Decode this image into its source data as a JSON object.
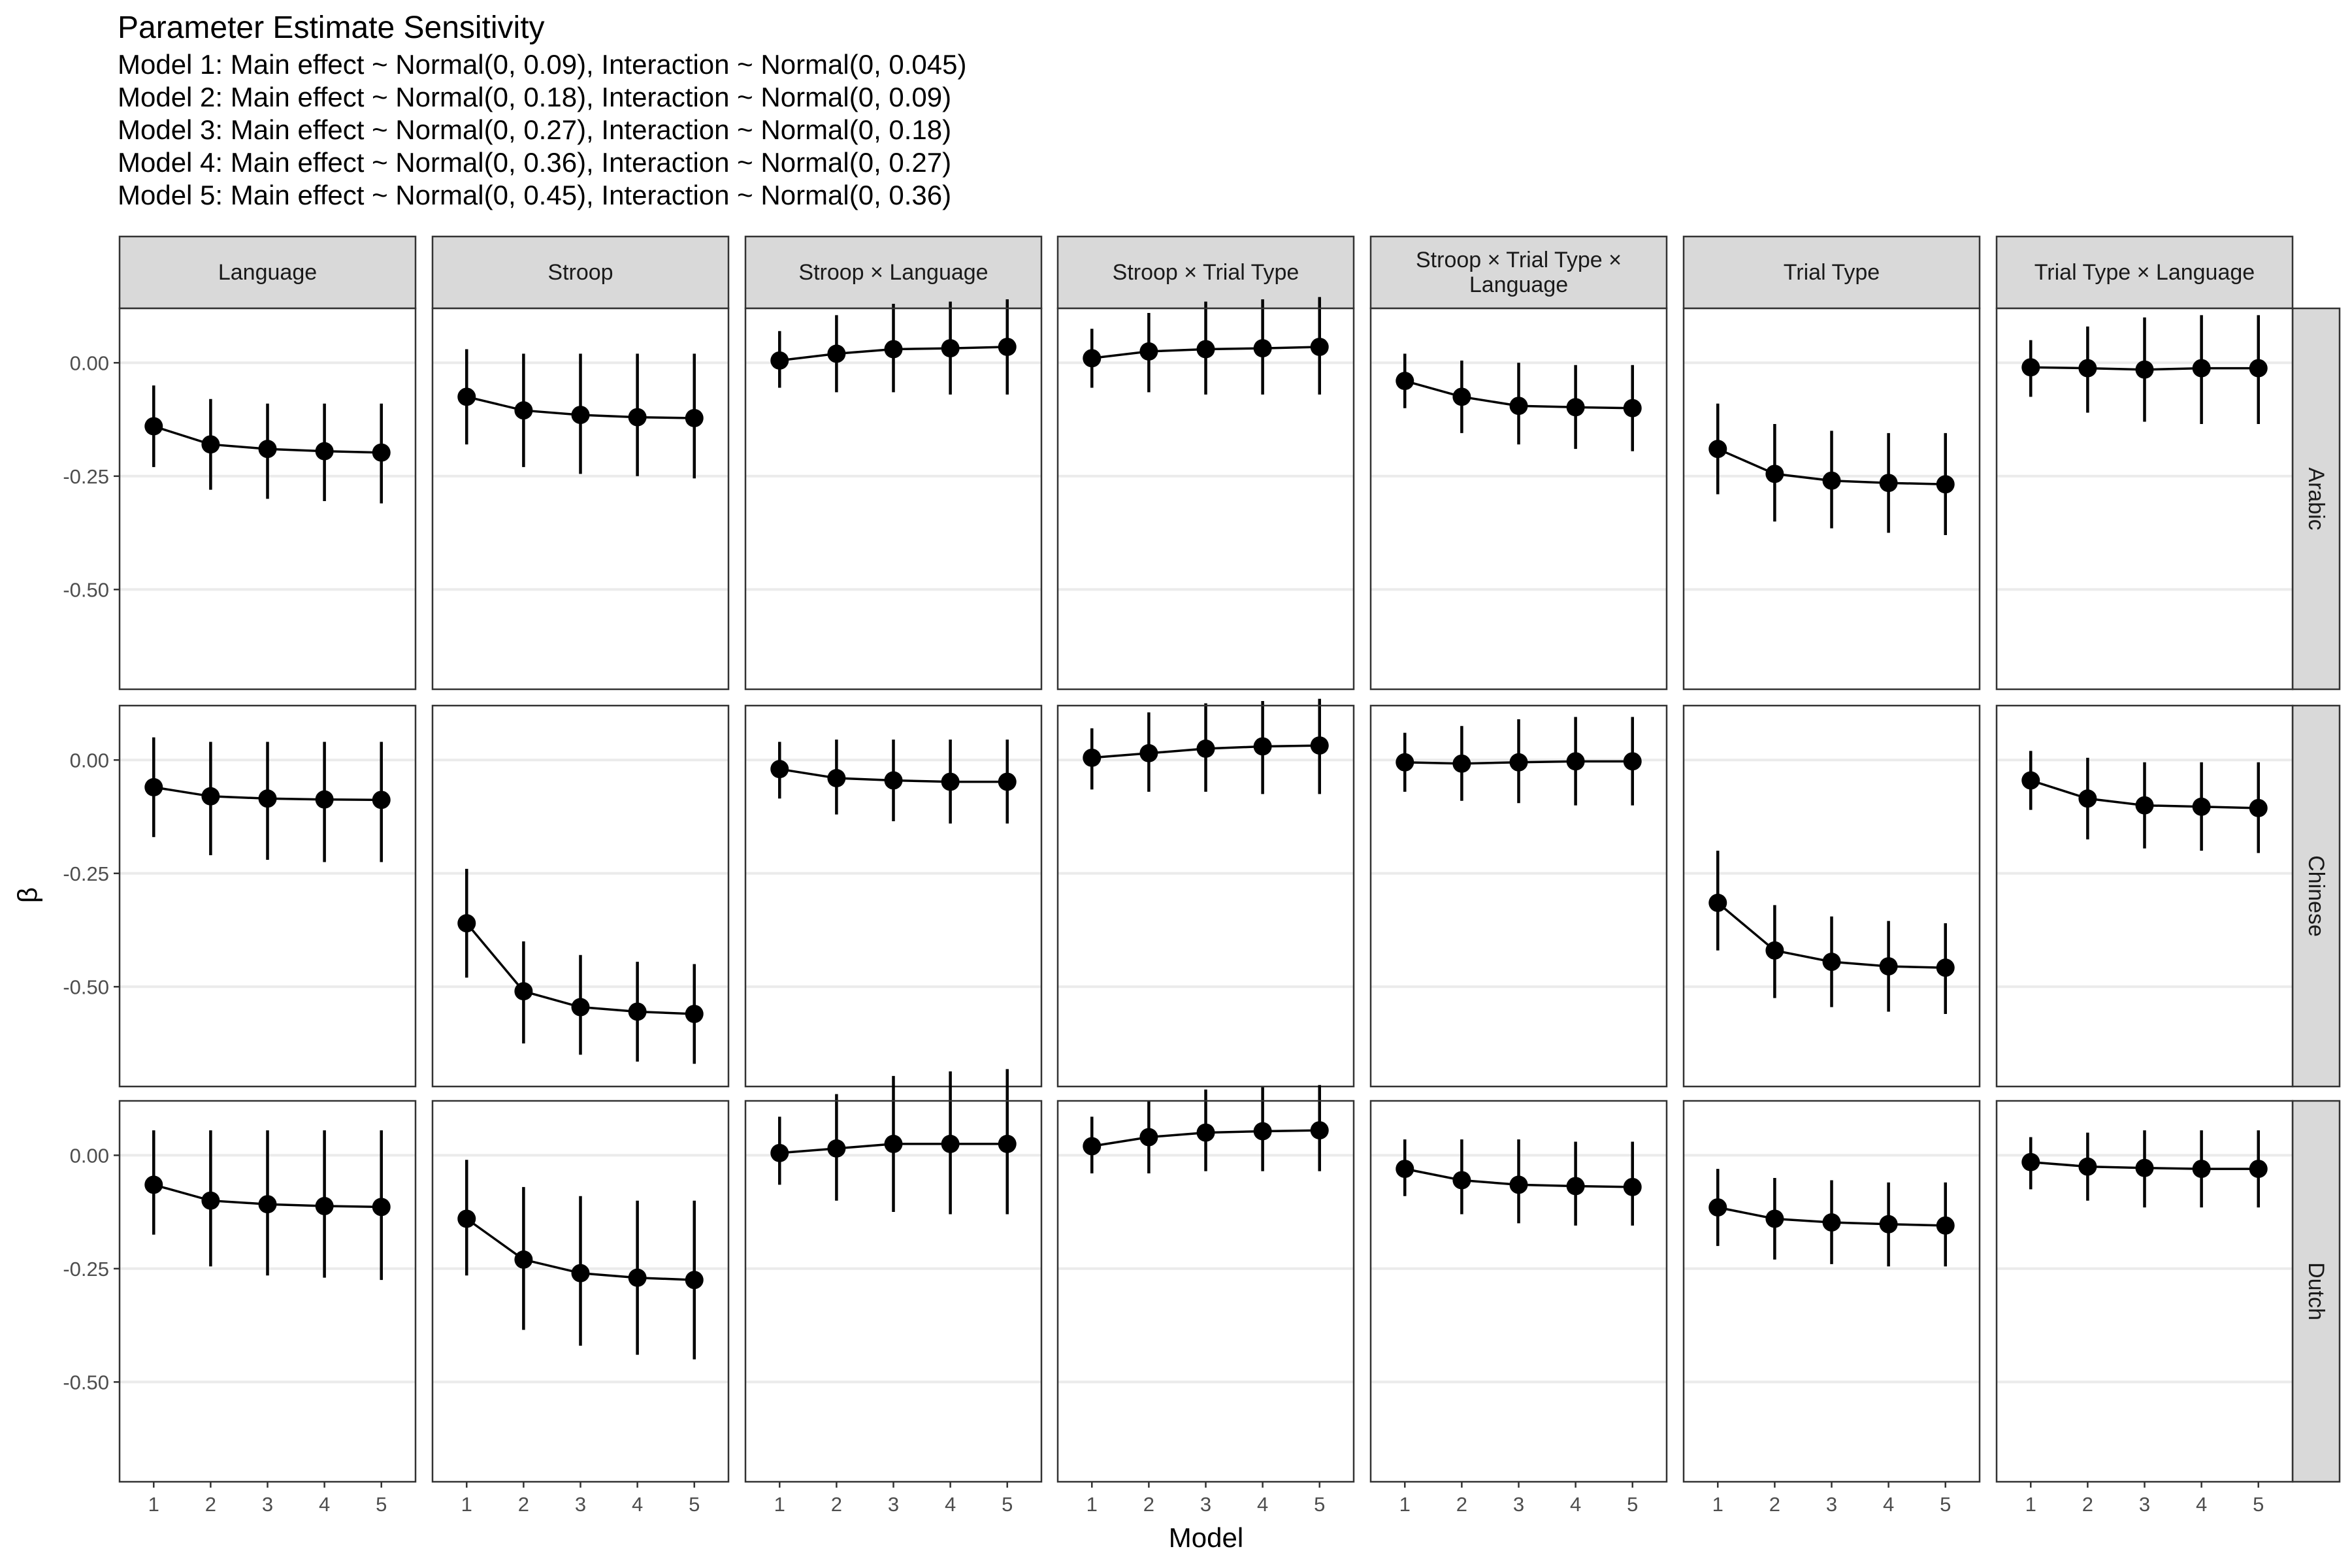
{
  "chart_data": {
    "type": "line",
    "title": "Parameter Estimate Sensitivity",
    "subtitle_lines": [
      "Model 1: Main effect ~ Normal(0, 0.09), Interaction ~ Normal(0, 0.045)",
      "Model 2: Main effect ~ Normal(0, 0.18), Interaction ~ Normal(0, 0.09)",
      "Model 3: Main effect ~ Normal(0, 0.27), Interaction ~ Normal(0, 0.18)",
      "Model 4: Main effect ~ Normal(0, 0.36), Interaction ~ Normal(0, 0.27)",
      "Model 5: Main effect ~ Normal(0, 0.45), Interaction ~ Normal(0, 0.36)"
    ],
    "xlabel": "Model",
    "ylabel": "β",
    "x": [
      1,
      2,
      3,
      4,
      5
    ],
    "x_ticks": [
      "1",
      "2",
      "3",
      "4",
      "5"
    ],
    "y_ticks": [
      0,
      -0.25,
      -0.5
    ],
    "y_tick_labels": [
      "0.00",
      "-0.25",
      "-0.50"
    ],
    "ylim": [
      -0.72,
      0.12
    ],
    "grid": true,
    "facet_columns": [
      "Language",
      "Stroop",
      "Stroop × Trial Type × Language#Stroop × Language",
      "Stroop × Trial Type",
      "Stroop × Trial Type × Language",
      "Trial Type",
      "Trial Type × Language"
    ],
    "column_labels": [
      [
        "Language"
      ],
      [
        "Stroop"
      ],
      [
        "Stroop × Language"
      ],
      [
        "Stroop × Trial Type"
      ],
      [
        "Stroop × Trial Type ×",
        "Language"
      ],
      [
        "Trial Type"
      ],
      [
        "Trial Type × Language"
      ]
    ],
    "facet_rows": [
      "Arabic",
      "Chinese",
      "Dutch"
    ],
    "panels": [
      [
        {
          "est": [
            -0.14,
            -0.18,
            -0.19,
            -0.195,
            -0.198
          ],
          "lo": [
            -0.23,
            -0.28,
            -0.3,
            -0.305,
            -0.31
          ],
          "hi": [
            -0.05,
            -0.08,
            -0.09,
            -0.09,
            -0.09
          ]
        },
        {
          "est": [
            -0.075,
            -0.105,
            -0.115,
            -0.12,
            -0.122
          ],
          "lo": [
            -0.18,
            -0.23,
            -0.245,
            -0.25,
            -0.255
          ],
          "hi": [
            0.03,
            0.02,
            0.02,
            0.02,
            0.02
          ]
        },
        {
          "est": [
            0.005,
            0.02,
            0.03,
            0.032,
            0.035
          ],
          "lo": [
            -0.055,
            -0.065,
            -0.065,
            -0.07,
            -0.07
          ],
          "hi": [
            0.07,
            0.105,
            0.13,
            0.135,
            0.14
          ]
        },
        {
          "est": [
            0.01,
            0.025,
            0.03,
            0.032,
            0.035
          ],
          "lo": [
            -0.055,
            -0.065,
            -0.07,
            -0.07,
            -0.07
          ],
          "hi": [
            0.075,
            0.11,
            0.135,
            0.14,
            0.145
          ]
        },
        {
          "est": [
            -0.04,
            -0.075,
            -0.095,
            -0.098,
            -0.1
          ],
          "lo": [
            -0.1,
            -0.155,
            -0.18,
            -0.19,
            -0.195
          ],
          "hi": [
            0.02,
            0.005,
            0.0,
            -0.005,
            -0.005
          ]
        },
        {
          "est": [
            -0.19,
            -0.245,
            -0.26,
            -0.265,
            -0.268
          ],
          "lo": [
            -0.29,
            -0.35,
            -0.365,
            -0.375,
            -0.38
          ],
          "hi": [
            -0.09,
            -0.135,
            -0.15,
            -0.155,
            -0.155
          ]
        },
        {
          "est": [
            -0.01,
            -0.012,
            -0.015,
            -0.012,
            -0.012
          ],
          "lo": [
            -0.075,
            -0.11,
            -0.13,
            -0.135,
            -0.135
          ],
          "hi": [
            0.05,
            0.08,
            0.1,
            0.105,
            0.105
          ]
        }
      ],
      [
        {
          "est": [
            -0.06,
            -0.08,
            -0.085,
            -0.087,
            -0.088
          ],
          "lo": [
            -0.17,
            -0.21,
            -0.22,
            -0.225,
            -0.225
          ],
          "hi": [
            0.05,
            0.04,
            0.04,
            0.04,
            0.04
          ]
        },
        {
          "est": [
            -0.36,
            -0.51,
            -0.545,
            -0.555,
            -0.56
          ],
          "lo": [
            -0.48,
            -0.625,
            -0.65,
            -0.665,
            -0.67
          ],
          "hi": [
            -0.24,
            -0.4,
            -0.43,
            -0.445,
            -0.45
          ]
        },
        {
          "est": [
            -0.02,
            -0.04,
            -0.045,
            -0.048,
            -0.048
          ],
          "lo": [
            -0.085,
            -0.12,
            -0.135,
            -0.14,
            -0.14
          ],
          "hi": [
            0.04,
            0.045,
            0.045,
            0.045,
            0.045
          ]
        },
        {
          "est": [
            0.005,
            0.015,
            0.025,
            0.03,
            0.032
          ],
          "lo": [
            -0.065,
            -0.07,
            -0.07,
            -0.075,
            -0.075
          ],
          "hi": [
            0.07,
            0.105,
            0.125,
            0.13,
            0.135
          ]
        },
        {
          "est": [
            -0.005,
            -0.008,
            -0.005,
            -0.003,
            -0.003
          ],
          "lo": [
            -0.07,
            -0.09,
            -0.095,
            -0.1,
            -0.1
          ],
          "hi": [
            0.06,
            0.075,
            0.09,
            0.095,
            0.095
          ]
        },
        {
          "est": [
            -0.315,
            -0.42,
            -0.445,
            -0.455,
            -0.458
          ],
          "lo": [
            -0.42,
            -0.525,
            -0.545,
            -0.555,
            -0.56
          ],
          "hi": [
            -0.2,
            -0.32,
            -0.345,
            -0.355,
            -0.36
          ]
        },
        {
          "est": [
            -0.045,
            -0.085,
            -0.1,
            -0.103,
            -0.106
          ],
          "lo": [
            -0.11,
            -0.175,
            -0.195,
            -0.2,
            -0.205
          ],
          "hi": [
            0.02,
            0.005,
            -0.005,
            -0.005,
            -0.005
          ]
        }
      ],
      [
        {
          "est": [
            -0.065,
            -0.1,
            -0.108,
            -0.112,
            -0.114
          ],
          "lo": [
            -0.175,
            -0.245,
            -0.265,
            -0.27,
            -0.275
          ],
          "hi": [
            0.055,
            0.055,
            0.055,
            0.055,
            0.055
          ]
        },
        {
          "est": [
            -0.14,
            -0.23,
            -0.26,
            -0.27,
            -0.275
          ],
          "lo": [
            -0.265,
            -0.385,
            -0.42,
            -0.44,
            -0.45
          ],
          "hi": [
            -0.01,
            -0.07,
            -0.09,
            -0.1,
            -0.1
          ]
        },
        {
          "est": [
            0.005,
            0.015,
            0.025,
            0.025,
            0.025
          ],
          "lo": [
            -0.065,
            -0.1,
            -0.125,
            -0.13,
            -0.13
          ],
          "hi": [
            0.085,
            0.135,
            0.175,
            0.185,
            0.19
          ]
        },
        {
          "est": [
            0.02,
            0.04,
            0.05,
            0.053,
            0.055
          ],
          "lo": [
            -0.04,
            -0.04,
            -0.035,
            -0.035,
            -0.035
          ],
          "hi": [
            0.085,
            0.12,
            0.145,
            0.15,
            0.155
          ]
        },
        {
          "est": [
            -0.03,
            -0.055,
            -0.065,
            -0.068,
            -0.07
          ],
          "lo": [
            -0.09,
            -0.13,
            -0.15,
            -0.155,
            -0.155
          ],
          "hi": [
            0.035,
            0.035,
            0.035,
            0.03,
            0.03
          ]
        },
        {
          "est": [
            -0.115,
            -0.14,
            -0.148,
            -0.152,
            -0.155
          ],
          "lo": [
            -0.2,
            -0.23,
            -0.24,
            -0.245,
            -0.245
          ],
          "hi": [
            -0.03,
            -0.05,
            -0.055,
            -0.06,
            -0.06
          ]
        },
        {
          "est": [
            -0.015,
            -0.025,
            -0.028,
            -0.03,
            -0.03
          ],
          "lo": [
            -0.075,
            -0.1,
            -0.115,
            -0.115,
            -0.115
          ],
          "hi": [
            0.04,
            0.05,
            0.055,
            0.055,
            0.055
          ]
        }
      ]
    ]
  }
}
